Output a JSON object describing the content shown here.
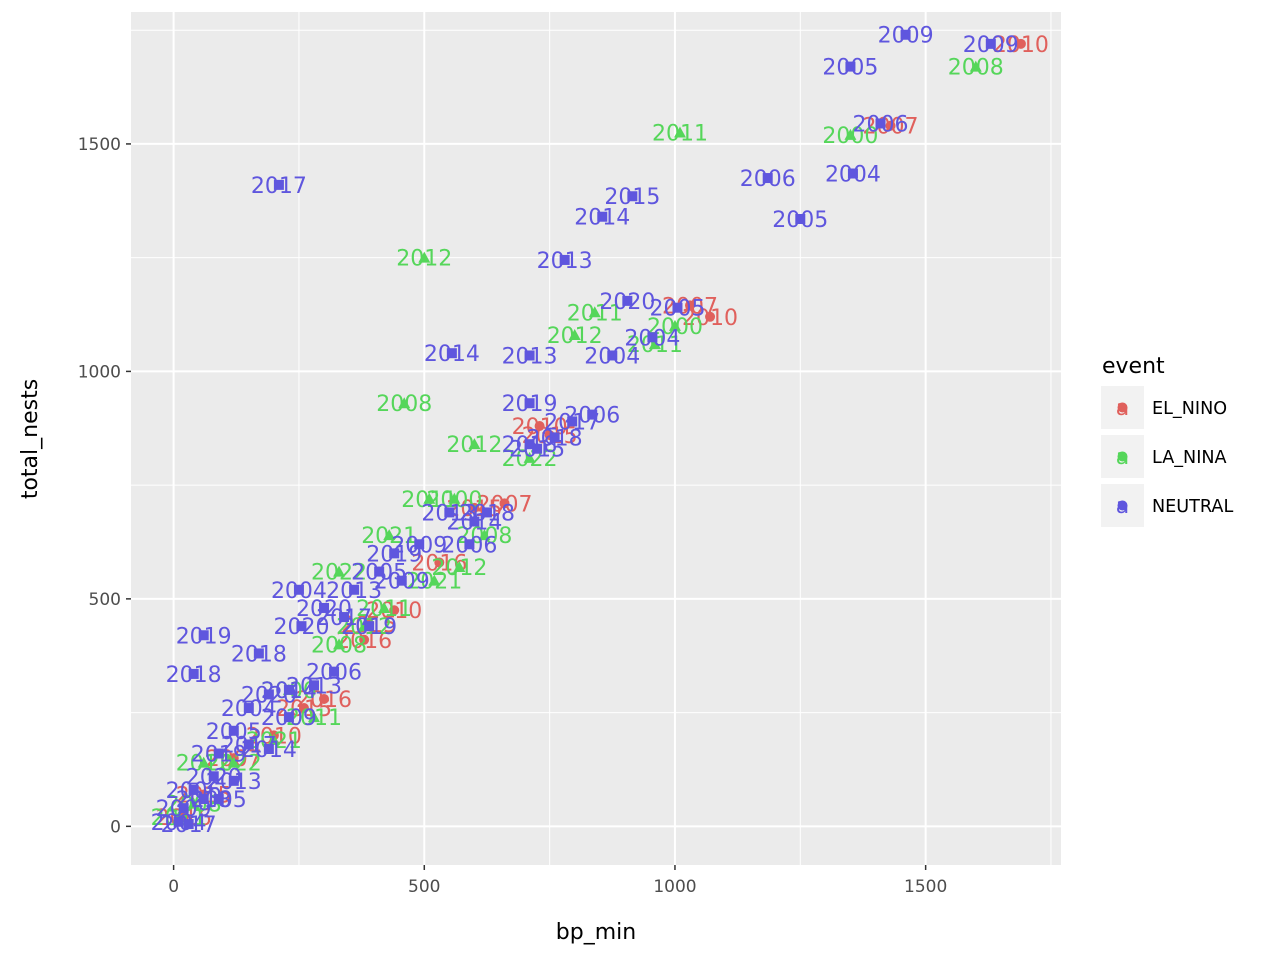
{
  "chart_data": {
    "type": "scatter",
    "title": "",
    "xlabel": "bp_min",
    "ylabel": "total_nests",
    "xlim": [
      -85,
      1770
    ],
    "ylim": [
      -85,
      1790
    ],
    "x_ticks": [
      0,
      500,
      1000,
      1500
    ],
    "y_ticks": [
      0,
      500,
      1000,
      1500
    ],
    "x_tick_labels": [
      "0",
      "500",
      "1000",
      "1500"
    ],
    "y_tick_labels": [
      "0",
      "500",
      "1000",
      "1500"
    ],
    "grid": true,
    "legend": {
      "title": "event",
      "position": "right",
      "key_glyph": "a",
      "entries": [
        {
          "name": "EL_NINO",
          "color": "#E0605C"
        },
        {
          "name": "LA_NINA",
          "color": "#55D65A"
        },
        {
          "name": "NEUTRAL",
          "color": "#5F56DE"
        }
      ]
    },
    "series": [
      {
        "name": "EL_NINO",
        "color": "#E0605C",
        "marker": "circle",
        "points": [
          {
            "x": 1690,
            "y": 1720,
            "label": "2010"
          },
          {
            "x": 1430,
            "y": 1540,
            "label": "2007"
          },
          {
            "x": 1070,
            "y": 1120,
            "label": "2010"
          },
          {
            "x": 1030,
            "y": 1145,
            "label": "2007"
          },
          {
            "x": 750,
            "y": 860,
            "label": "2015"
          },
          {
            "x": 730,
            "y": 880,
            "label": "2010"
          },
          {
            "x": 660,
            "y": 710,
            "label": "2007"
          },
          {
            "x": 600,
            "y": 700,
            "label": "2015"
          },
          {
            "x": 530,
            "y": 580,
            "label": "2016"
          },
          {
            "x": 440,
            "y": 475,
            "label": "2010"
          },
          {
            "x": 390,
            "y": 445,
            "label": "2015"
          },
          {
            "x": 380,
            "y": 410,
            "label": "2016"
          },
          {
            "x": 300,
            "y": 280,
            "label": "2016"
          },
          {
            "x": 260,
            "y": 260,
            "label": "2015"
          },
          {
            "x": 200,
            "y": 200,
            "label": "2010"
          },
          {
            "x": 120,
            "y": 150,
            "label": "2007"
          },
          {
            "x": 60,
            "y": 70,
            "label": "2015"
          },
          {
            "x": 20,
            "y": 20,
            "label": "2016"
          }
        ]
      },
      {
        "name": "LA_NINA",
        "color": "#55D65A",
        "marker": "triangle",
        "points": [
          {
            "x": 1600,
            "y": 1670,
            "label": "2008"
          },
          {
            "x": 1350,
            "y": 1520,
            "label": "2000"
          },
          {
            "x": 1010,
            "y": 1525,
            "label": "2011"
          },
          {
            "x": 1000,
            "y": 1100,
            "label": "2000"
          },
          {
            "x": 960,
            "y": 1060,
            "label": "2011"
          },
          {
            "x": 840,
            "y": 1130,
            "label": "2011"
          },
          {
            "x": 800,
            "y": 1080,
            "label": "2012"
          },
          {
            "x": 500,
            "y": 1250,
            "label": "2012"
          },
          {
            "x": 460,
            "y": 930,
            "label": "2008"
          },
          {
            "x": 600,
            "y": 840,
            "label": "2012"
          },
          {
            "x": 710,
            "y": 810,
            "label": "2022"
          },
          {
            "x": 510,
            "y": 720,
            "label": "2011"
          },
          {
            "x": 560,
            "y": 720,
            "label": "2000"
          },
          {
            "x": 620,
            "y": 640,
            "label": "2008"
          },
          {
            "x": 430,
            "y": 640,
            "label": "2021"
          },
          {
            "x": 570,
            "y": 570,
            "label": "2012"
          },
          {
            "x": 520,
            "y": 540,
            "label": "2021"
          },
          {
            "x": 330,
            "y": 560,
            "label": "2022"
          },
          {
            "x": 420,
            "y": 480,
            "label": "2011"
          },
          {
            "x": 380,
            "y": 440,
            "label": "2012"
          },
          {
            "x": 330,
            "y": 400,
            "label": "2008"
          },
          {
            "x": 230,
            "y": 300,
            "label": "2000"
          },
          {
            "x": 280,
            "y": 240,
            "label": "2011"
          },
          {
            "x": 200,
            "y": 190,
            "label": "2021"
          },
          {
            "x": 120,
            "y": 140,
            "label": "2022"
          },
          {
            "x": 60,
            "y": 140,
            "label": "2012"
          },
          {
            "x": 40,
            "y": 50,
            "label": "2008"
          },
          {
            "x": 10,
            "y": 20,
            "label": "2011"
          }
        ]
      },
      {
        "name": "NEUTRAL",
        "color": "#5F56DE",
        "marker": "square",
        "points": [
          {
            "x": 1460,
            "y": 1740,
            "label": "2009"
          },
          {
            "x": 1630,
            "y": 1720,
            "label": "2009"
          },
          {
            "x": 1350,
            "y": 1670,
            "label": "2005"
          },
          {
            "x": 1410,
            "y": 1545,
            "label": "2006"
          },
          {
            "x": 1185,
            "y": 1425,
            "label": "2006"
          },
          {
            "x": 1355,
            "y": 1435,
            "label": "2004"
          },
          {
            "x": 915,
            "y": 1385,
            "label": "2015"
          },
          {
            "x": 855,
            "y": 1340,
            "label": "2014"
          },
          {
            "x": 1250,
            "y": 1335,
            "label": "2005"
          },
          {
            "x": 780,
            "y": 1245,
            "label": "2013"
          },
          {
            "x": 210,
            "y": 1410,
            "label": "2017"
          },
          {
            "x": 905,
            "y": 1155,
            "label": "2020"
          },
          {
            "x": 1005,
            "y": 1140,
            "label": "2005"
          },
          {
            "x": 955,
            "y": 1075,
            "label": "2004"
          },
          {
            "x": 555,
            "y": 1040,
            "label": "2014"
          },
          {
            "x": 710,
            "y": 1035,
            "label": "2013"
          },
          {
            "x": 875,
            "y": 1035,
            "label": "2004"
          },
          {
            "x": 710,
            "y": 930,
            "label": "2019"
          },
          {
            "x": 835,
            "y": 905,
            "label": "2006"
          },
          {
            "x": 795,
            "y": 890,
            "label": "2017"
          },
          {
            "x": 760,
            "y": 855,
            "label": "2018"
          },
          {
            "x": 710,
            "y": 840,
            "label": "2018"
          },
          {
            "x": 725,
            "y": 830,
            "label": "2015"
          },
          {
            "x": 550,
            "y": 690,
            "label": "2013"
          },
          {
            "x": 625,
            "y": 690,
            "label": "2018"
          },
          {
            "x": 600,
            "y": 670,
            "label": "2014"
          },
          {
            "x": 590,
            "y": 620,
            "label": "2006"
          },
          {
            "x": 490,
            "y": 620,
            "label": "2009"
          },
          {
            "x": 440,
            "y": 600,
            "label": "2019"
          },
          {
            "x": 410,
            "y": 560,
            "label": "2005"
          },
          {
            "x": 250,
            "y": 520,
            "label": "2004"
          },
          {
            "x": 455,
            "y": 540,
            "label": "2009"
          },
          {
            "x": 360,
            "y": 520,
            "label": "2013"
          },
          {
            "x": 300,
            "y": 480,
            "label": "2020"
          },
          {
            "x": 255,
            "y": 440,
            "label": "2020"
          },
          {
            "x": 390,
            "y": 440,
            "label": "2019"
          },
          {
            "x": 340,
            "y": 460,
            "label": "2017"
          },
          {
            "x": 60,
            "y": 420,
            "label": "2019"
          },
          {
            "x": 40,
            "y": 335,
            "label": "2018"
          },
          {
            "x": 170,
            "y": 380,
            "label": "2018"
          },
          {
            "x": 230,
            "y": 300,
            "label": "2014"
          },
          {
            "x": 190,
            "y": 290,
            "label": "2020"
          },
          {
            "x": 320,
            "y": 340,
            "label": "2006"
          },
          {
            "x": 280,
            "y": 310,
            "label": "2013"
          },
          {
            "x": 150,
            "y": 260,
            "label": "2004"
          },
          {
            "x": 120,
            "y": 210,
            "label": "2005"
          },
          {
            "x": 230,
            "y": 240,
            "label": "2009"
          },
          {
            "x": 150,
            "y": 180,
            "label": "2017"
          },
          {
            "x": 90,
            "y": 160,
            "label": "2019"
          },
          {
            "x": 190,
            "y": 170,
            "label": "2014"
          },
          {
            "x": 80,
            "y": 110,
            "label": "2020"
          },
          {
            "x": 120,
            "y": 100,
            "label": "2013"
          },
          {
            "x": 40,
            "y": 80,
            "label": "2006"
          },
          {
            "x": 60,
            "y": 60,
            "label": "2018"
          },
          {
            "x": 20,
            "y": 40,
            "label": "2009"
          },
          {
            "x": 10,
            "y": 10,
            "label": "2004"
          },
          {
            "x": 90,
            "y": 60,
            "label": "2005"
          },
          {
            "x": 30,
            "y": 5,
            "label": "2017"
          }
        ]
      }
    ]
  }
}
